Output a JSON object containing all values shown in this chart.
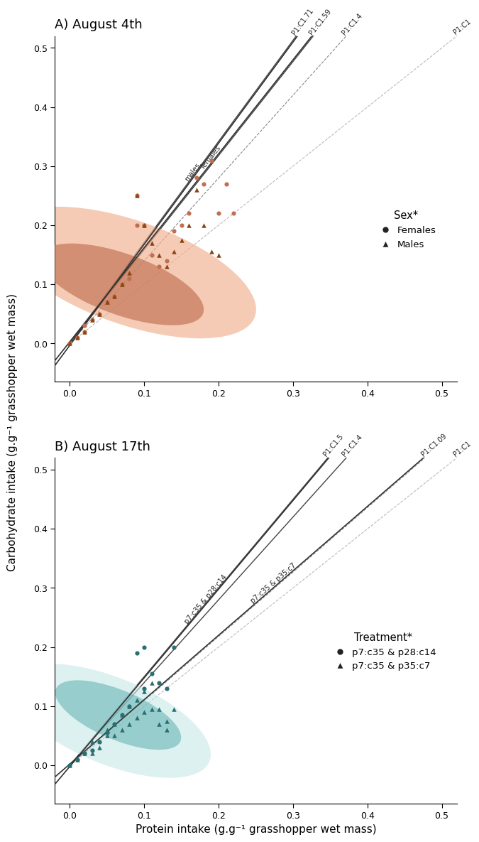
{
  "panel_a": {
    "title": "A) August 4th",
    "females_x": [
      0.0,
      0.01,
      0.02,
      0.02,
      0.03,
      0.04,
      0.05,
      0.06,
      0.07,
      0.08,
      0.09,
      0.09,
      0.1,
      0.11,
      0.12,
      0.13,
      0.14,
      0.15,
      0.16,
      0.17,
      0.18,
      0.19,
      0.2,
      0.21,
      0.22
    ],
    "females_y": [
      0.0,
      0.01,
      0.02,
      0.03,
      0.04,
      0.05,
      0.07,
      0.08,
      0.1,
      0.11,
      0.25,
      0.2,
      0.2,
      0.15,
      0.13,
      0.14,
      0.19,
      0.2,
      0.22,
      0.28,
      0.27,
      0.31,
      0.22,
      0.27,
      0.22
    ],
    "males_x": [
      0.0,
      0.01,
      0.02,
      0.03,
      0.04,
      0.05,
      0.06,
      0.07,
      0.08,
      0.09,
      0.1,
      0.11,
      0.12,
      0.13,
      0.14,
      0.15,
      0.16,
      0.17,
      0.18,
      0.19,
      0.2
    ],
    "males_y": [
      0.0,
      0.01,
      0.02,
      0.04,
      0.05,
      0.07,
      0.08,
      0.1,
      0.12,
      0.25,
      0.2,
      0.17,
      0.15,
      0.13,
      0.155,
      0.175,
      0.2,
      0.26,
      0.2,
      0.155,
      0.15
    ],
    "female_color": "#c07050",
    "male_color": "#8b4513",
    "female_ellipse_color": "#f0b090",
    "male_ellipse_color": "#c07050",
    "regression_males_slope": 1.71,
    "regression_males_intercept": -0.003,
    "regression_females_slope": 1.59,
    "regression_females_intercept": 0.003,
    "ratio_lines_panel_a": [
      {
        "slope": 1.71,
        "label": "P1:C1.71",
        "style": "solid",
        "color": "#444444",
        "lw": 1.0
      },
      {
        "slope": 1.59,
        "label": "P1:C1.59",
        "style": "solid",
        "color": "#444444",
        "lw": 1.0
      },
      {
        "slope": 1.4,
        "label": "P1:C1.4",
        "style": "dashed",
        "color": "#888888",
        "lw": 0.8
      },
      {
        "slope": 1.0,
        "label": "P1:C1",
        "style": "dashed",
        "color": "#bbbbbb",
        "lw": 0.8
      }
    ],
    "legend_title": "Sex*",
    "males_line_label": "males",
    "females_line_label": "females"
  },
  "panel_b": {
    "title": "B) August 17th",
    "p28_x": [
      0.0,
      0.01,
      0.02,
      0.03,
      0.04,
      0.05,
      0.06,
      0.07,
      0.08,
      0.09,
      0.1,
      0.1,
      0.11,
      0.12,
      0.13,
      0.14
    ],
    "p28_y": [
      0.0,
      0.01,
      0.02,
      0.025,
      0.04,
      0.055,
      0.07,
      0.085,
      0.1,
      0.19,
      0.13,
      0.2,
      0.155,
      0.14,
      0.13,
      0.2
    ],
    "p35_x": [
      0.0,
      0.01,
      0.02,
      0.03,
      0.03,
      0.04,
      0.05,
      0.05,
      0.06,
      0.06,
      0.07,
      0.07,
      0.08,
      0.08,
      0.09,
      0.09,
      0.1,
      0.1,
      0.11,
      0.11,
      0.12,
      0.12,
      0.13,
      0.13,
      0.14
    ],
    "p35_y": [
      0.0,
      0.01,
      0.02,
      0.02,
      0.04,
      0.03,
      0.05,
      0.06,
      0.05,
      0.07,
      0.06,
      0.085,
      0.07,
      0.1,
      0.08,
      0.11,
      0.09,
      0.125,
      0.095,
      0.14,
      0.07,
      0.095,
      0.06,
      0.075,
      0.095
    ],
    "p28_color": "#2a7070",
    "p35_color": "#2a7070",
    "p28_ellipse_color": "#c8e8e8",
    "p35_ellipse_color": "#60b0b0",
    "regression_p28_slope": 1.5,
    "regression_p28_intercept": -0.002,
    "regression_p35_slope": 1.09,
    "regression_p35_intercept": 0.002,
    "ratio_lines_panel_b": [
      {
        "slope": 1.5,
        "label": "P1:C1.5",
        "style": "solid",
        "color": "#444444",
        "lw": 1.0
      },
      {
        "slope": 1.4,
        "label": "P1:C1.4",
        "style": "solid",
        "color": "#444444",
        "lw": 1.0
      },
      {
        "slope": 1.09,
        "label": "P1:C1.09",
        "style": "dashed",
        "color": "#888888",
        "lw": 0.8
      },
      {
        "slope": 1.0,
        "label": "P1:C1",
        "style": "dashed",
        "color": "#bbbbbb",
        "lw": 0.8
      }
    ],
    "legend_title": "Treatment*",
    "p28_line_label": "p7:c35 & p28:c14",
    "p35_line_label": "p7:c35 & p35:c7"
  },
  "xlim": [
    -0.02,
    0.52
  ],
  "ylim": [
    -0.065,
    0.52
  ],
  "xticks": [
    0.0,
    0.1,
    0.2,
    0.3,
    0.4,
    0.5
  ],
  "yticks": [
    0.0,
    0.1,
    0.2,
    0.3,
    0.4,
    0.5
  ],
  "xlabel": "Protein intake (g.g⁻¹ grasshopper wet mass)",
  "ylabel": "Carbohydrate intake (g.g⁻¹ grasshopper wet mass)",
  "bg": "#ffffff"
}
